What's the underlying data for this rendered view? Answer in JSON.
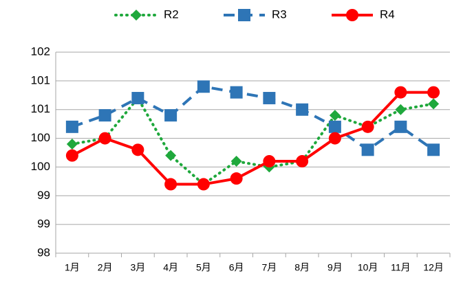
{
  "chart_data": {
    "type": "line",
    "categories": [
      "1月",
      "2月",
      "3月",
      "4月",
      "5月",
      "6月",
      "7月",
      "8月",
      "9月",
      "10月",
      "11月",
      "12月"
    ],
    "series": [
      {
        "name": "R2",
        "color": "#1fa83c",
        "marker": "diamond",
        "dash": "dotted",
        "values": [
          99.9,
          100.0,
          100.7,
          99.7,
          99.2,
          99.6,
          99.5,
          99.6,
          100.4,
          100.2,
          100.5,
          100.6
        ]
      },
      {
        "name": "R3",
        "color": "#2e75b6",
        "marker": "square",
        "dash": "dashed",
        "values": [
          100.2,
          100.4,
          100.7,
          100.4,
          100.9,
          100.8,
          100.7,
          100.5,
          100.2,
          99.8,
          100.2,
          99.8
        ]
      },
      {
        "name": "R4",
        "color": "#ff0000",
        "marker": "circle",
        "dash": "solid",
        "values": [
          99.7,
          100.0,
          99.8,
          99.2,
          99.2,
          99.3,
          99.6,
          99.6,
          100.0,
          100.2,
          100.8,
          100.8
        ]
      }
    ],
    "ylim": [
      98,
      101.5
    ],
    "yticks": [
      98,
      {
        "value": 98.5,
        "label": "99"
      },
      99,
      {
        "value": 99.5,
        "label": "100"
      },
      100,
      {
        "value": 100.5,
        "label": "101"
      },
      101,
      {
        "value": 101.5,
        "label": "102"
      }
    ],
    "grid": true,
    "legend": "top"
  }
}
